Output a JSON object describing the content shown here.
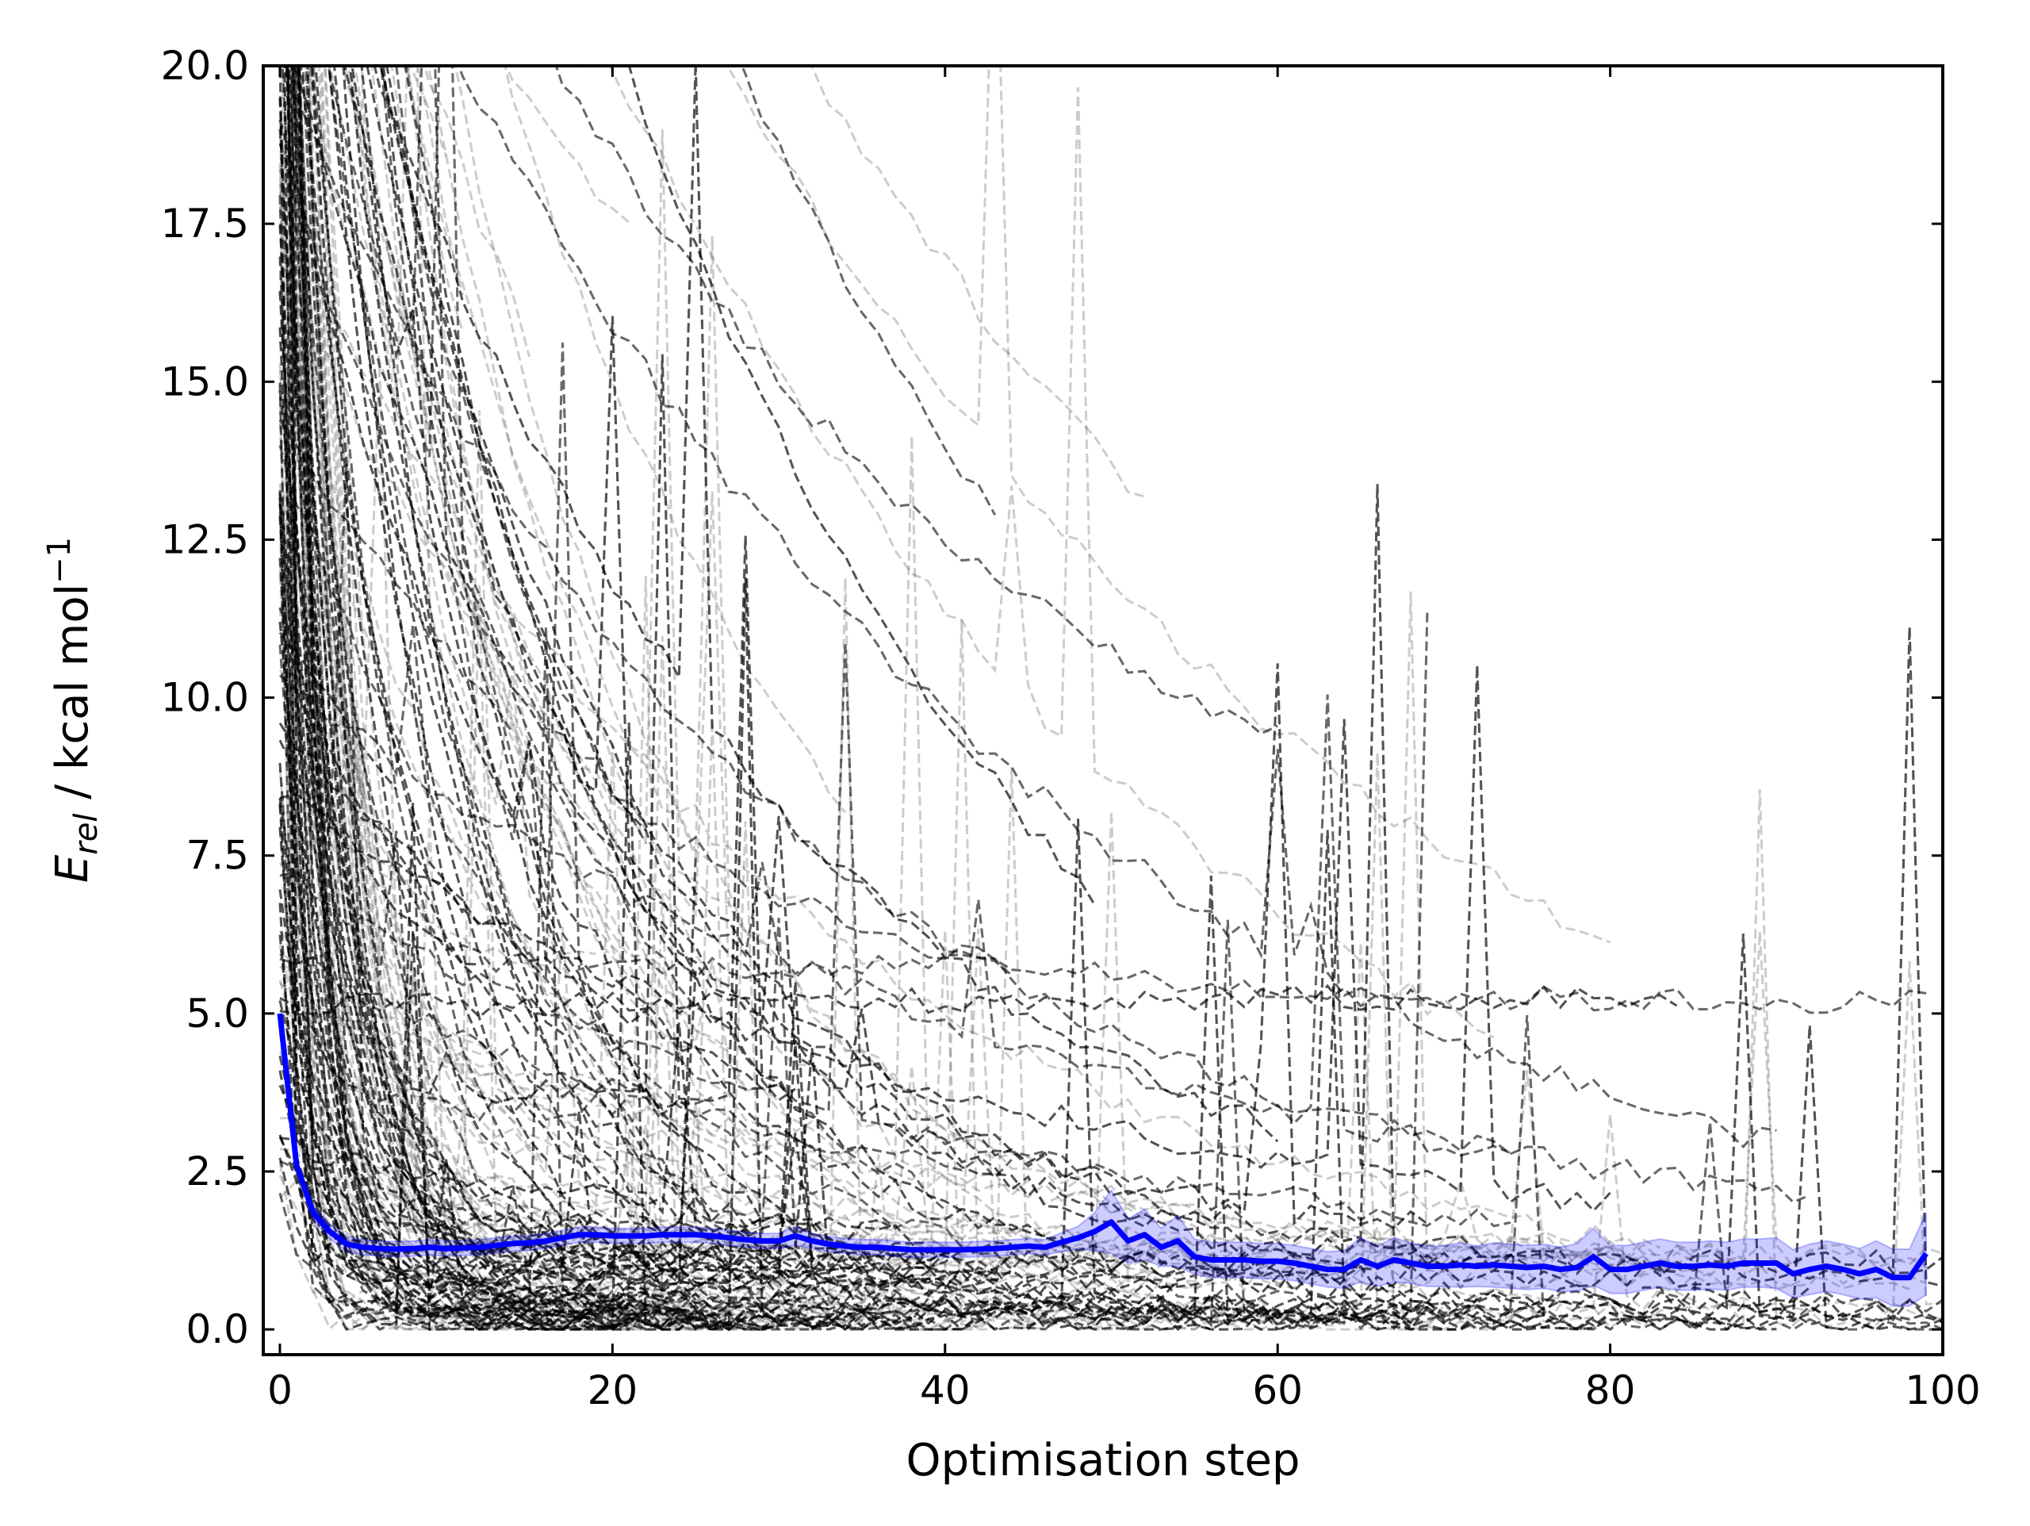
{
  "chart_data": {
    "type": "line",
    "title": "",
    "xlabel": "Optimisation step",
    "ylabel": {
      "symbol": "E",
      "subscript": "rel",
      "unit": " / kcal mol",
      "exponent": "−1"
    },
    "xlim": [
      -1,
      100
    ],
    "ylim": [
      -0.4,
      20
    ],
    "x_ticks": [
      0,
      20,
      40,
      60,
      80,
      100
    ],
    "x_tick_labels": [
      "0",
      "20",
      "40",
      "60",
      "80",
      "100"
    ],
    "y_ticks": [
      0,
      2.5,
      5,
      7.5,
      10,
      12.5,
      15,
      17.5,
      20
    ],
    "y_tick_labels": [
      "0.0",
      "2.5",
      "5.0",
      "7.5",
      "10.0",
      "12.5",
      "15.0",
      "17.5",
      "20.0"
    ],
    "grid": false,
    "colors": {
      "mean_line": "#0000ff",
      "band": "#0000ff",
      "trajectories": "#000000",
      "axes": "#000000"
    },
    "background_trajectories": {
      "description_count": 600,
      "style": "dashed",
      "opacity": 0.2
    },
    "series": [
      {
        "kind": "mean",
        "x": [
          0,
          1,
          2,
          3,
          4,
          5,
          6,
          7,
          8,
          9,
          10,
          11,
          12,
          13,
          14,
          15,
          16,
          17,
          18,
          19,
          20,
          21,
          22,
          23,
          24,
          25,
          26,
          27,
          28,
          29,
          30,
          31,
          32,
          33,
          34,
          35,
          36,
          37,
          38,
          39,
          40,
          41,
          42,
          43,
          44,
          45,
          46,
          47,
          48,
          49,
          50,
          51,
          52,
          53,
          54,
          55,
          56,
          57,
          58,
          59,
          60,
          61,
          62,
          63,
          64,
          65,
          66,
          67,
          68,
          69,
          70,
          71,
          72,
          73,
          74,
          75,
          76,
          77,
          78,
          79,
          80,
          81,
          82,
          83,
          84,
          85,
          86,
          87,
          88,
          89,
          90,
          91,
          92,
          93,
          94,
          95,
          96,
          97,
          98,
          99
        ],
        "values": [
          5.0,
          2.6,
          1.85,
          1.55,
          1.35,
          1.3,
          1.28,
          1.27,
          1.28,
          1.3,
          1.28,
          1.29,
          1.3,
          1.33,
          1.36,
          1.37,
          1.4,
          1.45,
          1.5,
          1.5,
          1.48,
          1.48,
          1.48,
          1.5,
          1.5,
          1.5,
          1.48,
          1.45,
          1.42,
          1.4,
          1.4,
          1.48,
          1.4,
          1.35,
          1.32,
          1.3,
          1.3,
          1.28,
          1.26,
          1.26,
          1.26,
          1.26,
          1.27,
          1.28,
          1.3,
          1.32,
          1.3,
          1.38,
          1.45,
          1.55,
          1.7,
          1.4,
          1.5,
          1.3,
          1.4,
          1.15,
          1.1,
          1.1,
          1.1,
          1.08,
          1.08,
          1.05,
          1.0,
          0.95,
          0.95,
          1.1,
          1.0,
          1.1,
          1.05,
          1.0,
          1.0,
          1.02,
          1.0,
          1.02,
          1.0,
          0.98,
          1.0,
          0.95,
          0.98,
          1.15,
          0.95,
          0.95,
          1.0,
          1.05,
          1.0,
          1.0,
          1.02,
          1.0,
          1.05,
          1.05,
          1.05,
          0.88,
          0.95,
          1.0,
          0.95,
          0.88,
          0.95,
          0.82,
          0.82,
          1.2
        ]
      },
      {
        "kind": "band-half-width",
        "values": [
          0.0,
          0.1,
          0.12,
          0.12,
          0.12,
          0.12,
          0.12,
          0.12,
          0.12,
          0.12,
          0.12,
          0.12,
          0.12,
          0.12,
          0.12,
          0.12,
          0.12,
          0.12,
          0.12,
          0.12,
          0.12,
          0.12,
          0.12,
          0.12,
          0.12,
          0.12,
          0.12,
          0.12,
          0.12,
          0.12,
          0.12,
          0.15,
          0.12,
          0.12,
          0.12,
          0.12,
          0.12,
          0.12,
          0.12,
          0.12,
          0.12,
          0.12,
          0.12,
          0.12,
          0.12,
          0.12,
          0.12,
          0.15,
          0.18,
          0.3,
          0.5,
          0.35,
          0.4,
          0.3,
          0.4,
          0.28,
          0.28,
          0.28,
          0.28,
          0.28,
          0.28,
          0.28,
          0.28,
          0.28,
          0.3,
          0.35,
          0.32,
          0.35,
          0.32,
          0.32,
          0.32,
          0.35,
          0.32,
          0.35,
          0.35,
          0.35,
          0.35,
          0.35,
          0.38,
          0.45,
          0.38,
          0.38,
          0.38,
          0.38,
          0.38,
          0.38,
          0.38,
          0.38,
          0.38,
          0.38,
          0.4,
          0.38,
          0.4,
          0.4,
          0.4,
          0.4,
          0.45,
          0.45,
          0.45,
          0.65
        ]
      }
    ]
  }
}
